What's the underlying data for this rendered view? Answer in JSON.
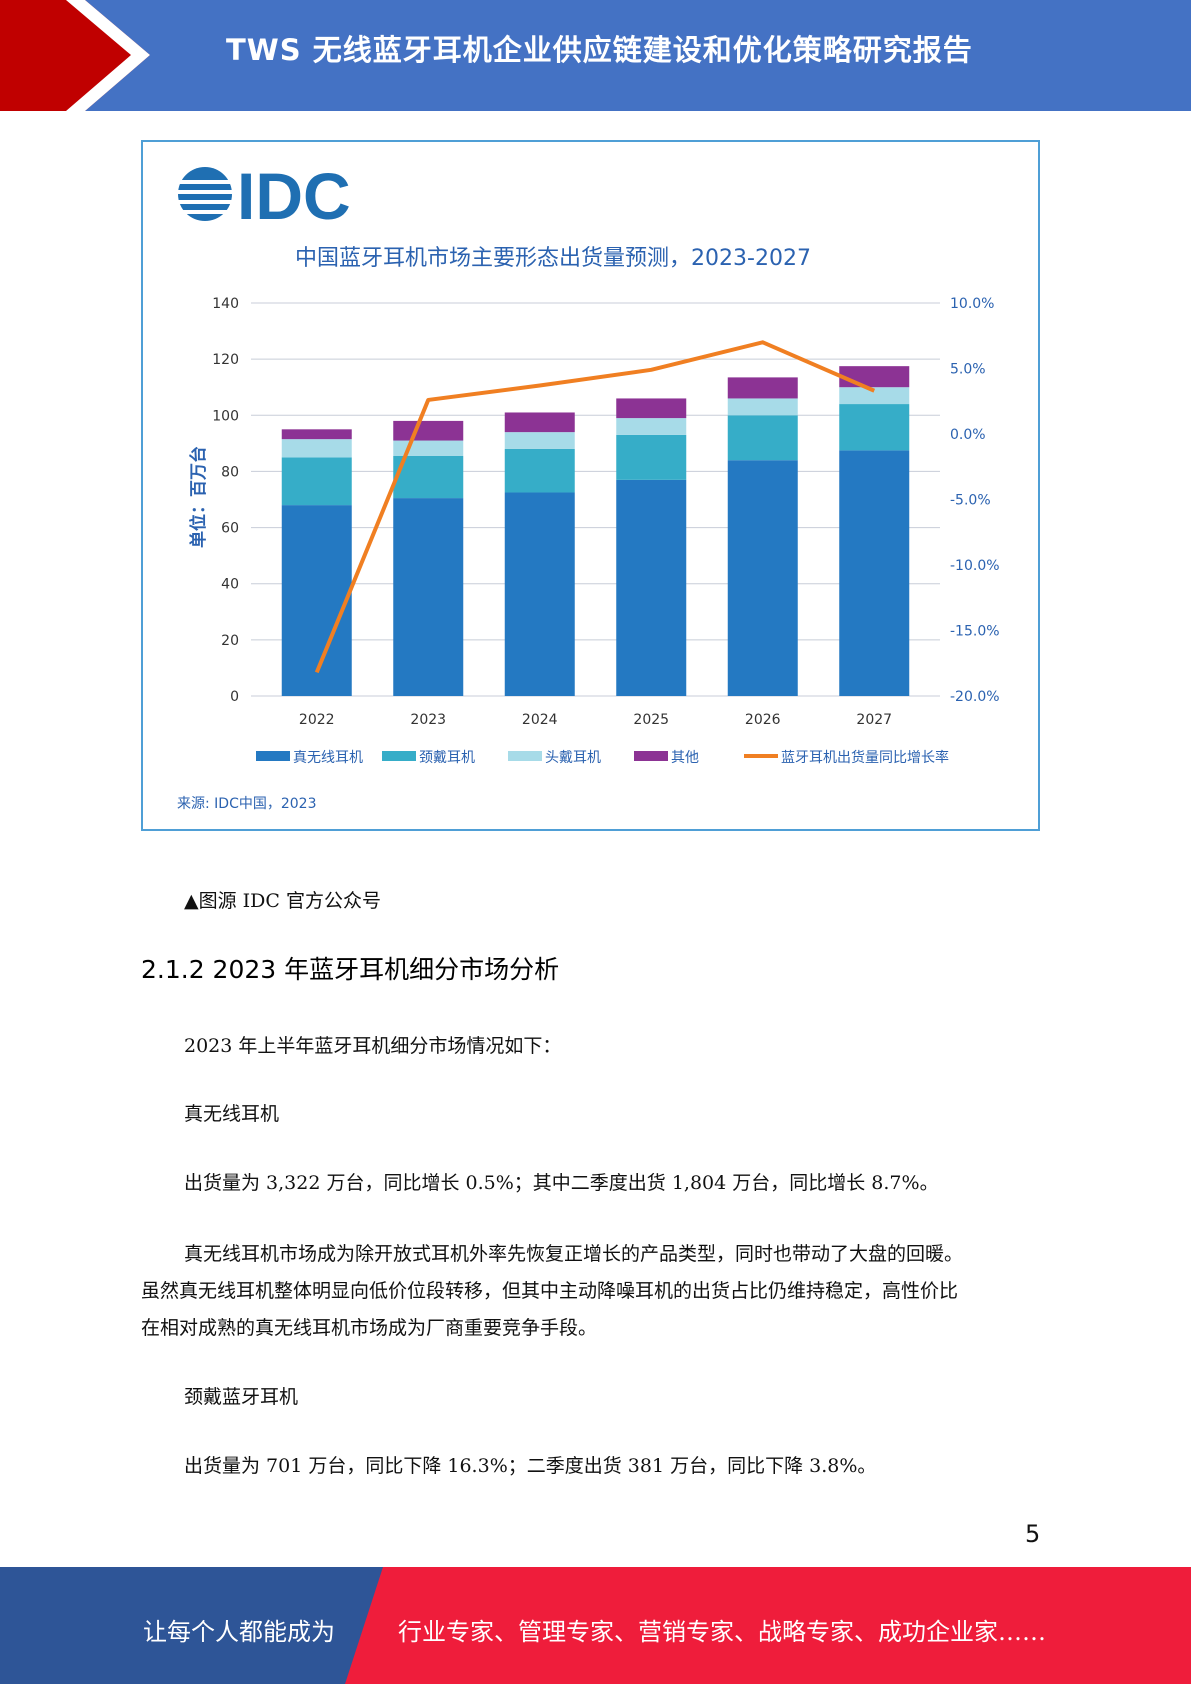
{
  "header": {
    "title": "TWS 无线蓝牙耳机企业供应链建设和优化策略研究报告"
  },
  "figure": {
    "logo_text": "IDC",
    "source_note": "来源: IDC中国，2023",
    "caption": "▲图源 IDC 官方公众号"
  },
  "chart_data": {
    "type": "bar",
    "stacked": true,
    "title": "中国蓝牙耳机市场主要形态出货量预测，2023-2027",
    "ylabel": "单位：百万台",
    "categories": [
      "2022",
      "2023",
      "2024",
      "2025",
      "2026",
      "2027"
    ],
    "ylim": [
      0,
      140
    ],
    "yticks": [
      "0",
      "20",
      "40",
      "60",
      "80",
      "100",
      "120",
      "140"
    ],
    "y2lim": [
      -20,
      10
    ],
    "y2ticks": [
      "-20.0%",
      "-15.0%",
      "-10.0%",
      "-5.0%",
      "0.0%",
      "5.0%",
      "10.0%"
    ],
    "grid": true,
    "legend_position": "bottom",
    "series": [
      {
        "name": "真无线耳机",
        "color": "#2479c2",
        "values": [
          68,
          70.5,
          72.5,
          77,
          84,
          87.5
        ]
      },
      {
        "name": "颈戴耳机",
        "color": "#36adc8",
        "values": [
          17,
          15,
          15.5,
          16,
          16,
          16.5
        ]
      },
      {
        "name": "头戴耳机",
        "color": "#a7dbe8",
        "values": [
          6.5,
          5.5,
          6,
          6,
          6,
          6
        ]
      },
      {
        "name": "其他",
        "color": "#8c3394",
        "values": [
          3.5,
          7,
          7,
          7,
          7.5,
          7.5
        ]
      }
    ],
    "line_series": {
      "name": "蓝牙耳机出货量同比增长率",
      "color": "#f07f22",
      "axis": "right",
      "values": [
        -18.2,
        2.6,
        3.7,
        4.9,
        7.0,
        3.3
      ]
    }
  },
  "section": {
    "heading": "2.1.2 2023 年蓝牙耳机细分市场分析",
    "intro": "2023 年上半年蓝牙耳机细分市场情况如下：",
    "sub1": "真无线耳机",
    "sub1_stats": "出货量为 3,322 万台，同比增长 0.5%；其中二季度出货 1,804 万台，同比增长 8.7%。",
    "sub1_para_lines": [
      "真无线耳机市场成为除开放式耳机外率先恢复正增长的产品类型，同时也带动了大盘的回暖。",
      "虽然真无线耳机整体明显向低价位段转移，但其中主动降噪耳机的出货占比仍维持稳定，高性价比",
      "在相对成熟的真无线耳机市场成为厂商重要竞争手段。"
    ],
    "sub2": "颈戴蓝牙耳机",
    "sub2_stats": "出货量为 701 万台，同比下降 16.3%；二季度出货 381 万台，同比下降 3.8%。"
  },
  "page_number": "5",
  "footer": {
    "left": "让每个人都能成为",
    "right": "行业专家、管理专家、营销专家、战略专家、成功企业家……"
  }
}
